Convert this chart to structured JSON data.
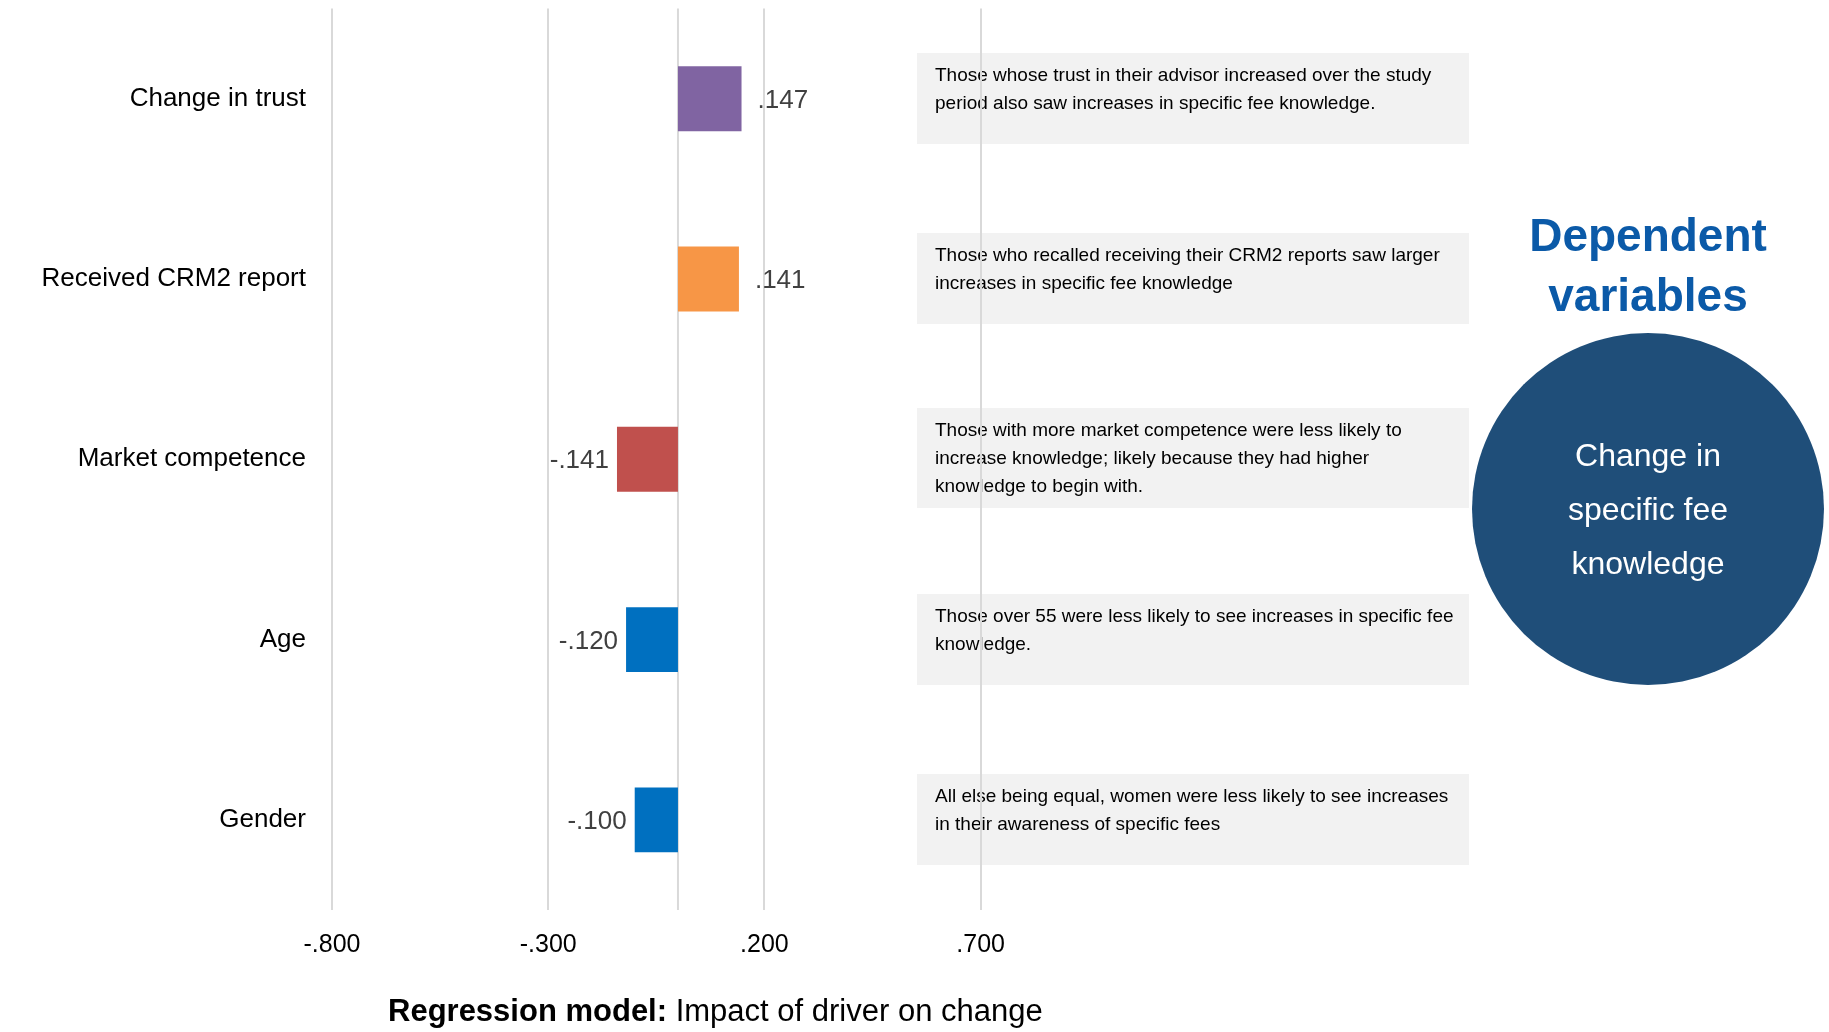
{
  "chart_data": {
    "type": "bar",
    "orientation": "horizontal",
    "categories": [
      "Change in trust",
      "Received CRM2 report",
      "Market competence",
      "Age",
      "Gender"
    ],
    "values": [
      0.147,
      0.141,
      -0.141,
      -0.12,
      -0.1
    ],
    "colors": [
      "#8064a2",
      "#f79646",
      "#c0504d",
      "#0070c0",
      "#0070c0"
    ],
    "value_labels": [
      ".147",
      ".141",
      "-.141",
      "-.120",
      "-.100"
    ],
    "xlim": [
      -0.8,
      0.7
    ],
    "xticks": [
      {
        "value": -0.8,
        "label": "-.800"
      },
      {
        "value": -0.3,
        "label": "-.300"
      },
      {
        "value": 0.2,
        "label": ".200"
      },
      {
        "value": 0.7,
        "label": ".700"
      }
    ],
    "grid": "x",
    "ref_lines": [
      {
        "axis": "x",
        "value": 0,
        "color": "#d9d9d9"
      }
    ],
    "xlabel": "Regression model: Impact of driver on change",
    "annotations": [
      "Those whose trust in their advisor increased over the study period also saw increases in specific fee knowledge.",
      "Those who recalled receiving their CRM2 reports saw larger increases in specific fee knowledge",
      "Those with more market competence were less likely to increase knowledge; likely because they had higher knowledge to begin with.",
      "Those over 55 were less likely to see increases in specific fee knowledge.",
      "All else being equal, women were less likely to see increases in their awareness of specific fees",
      "Dependent variables",
      "Change in specific fee knowledge"
    ]
  }
}
